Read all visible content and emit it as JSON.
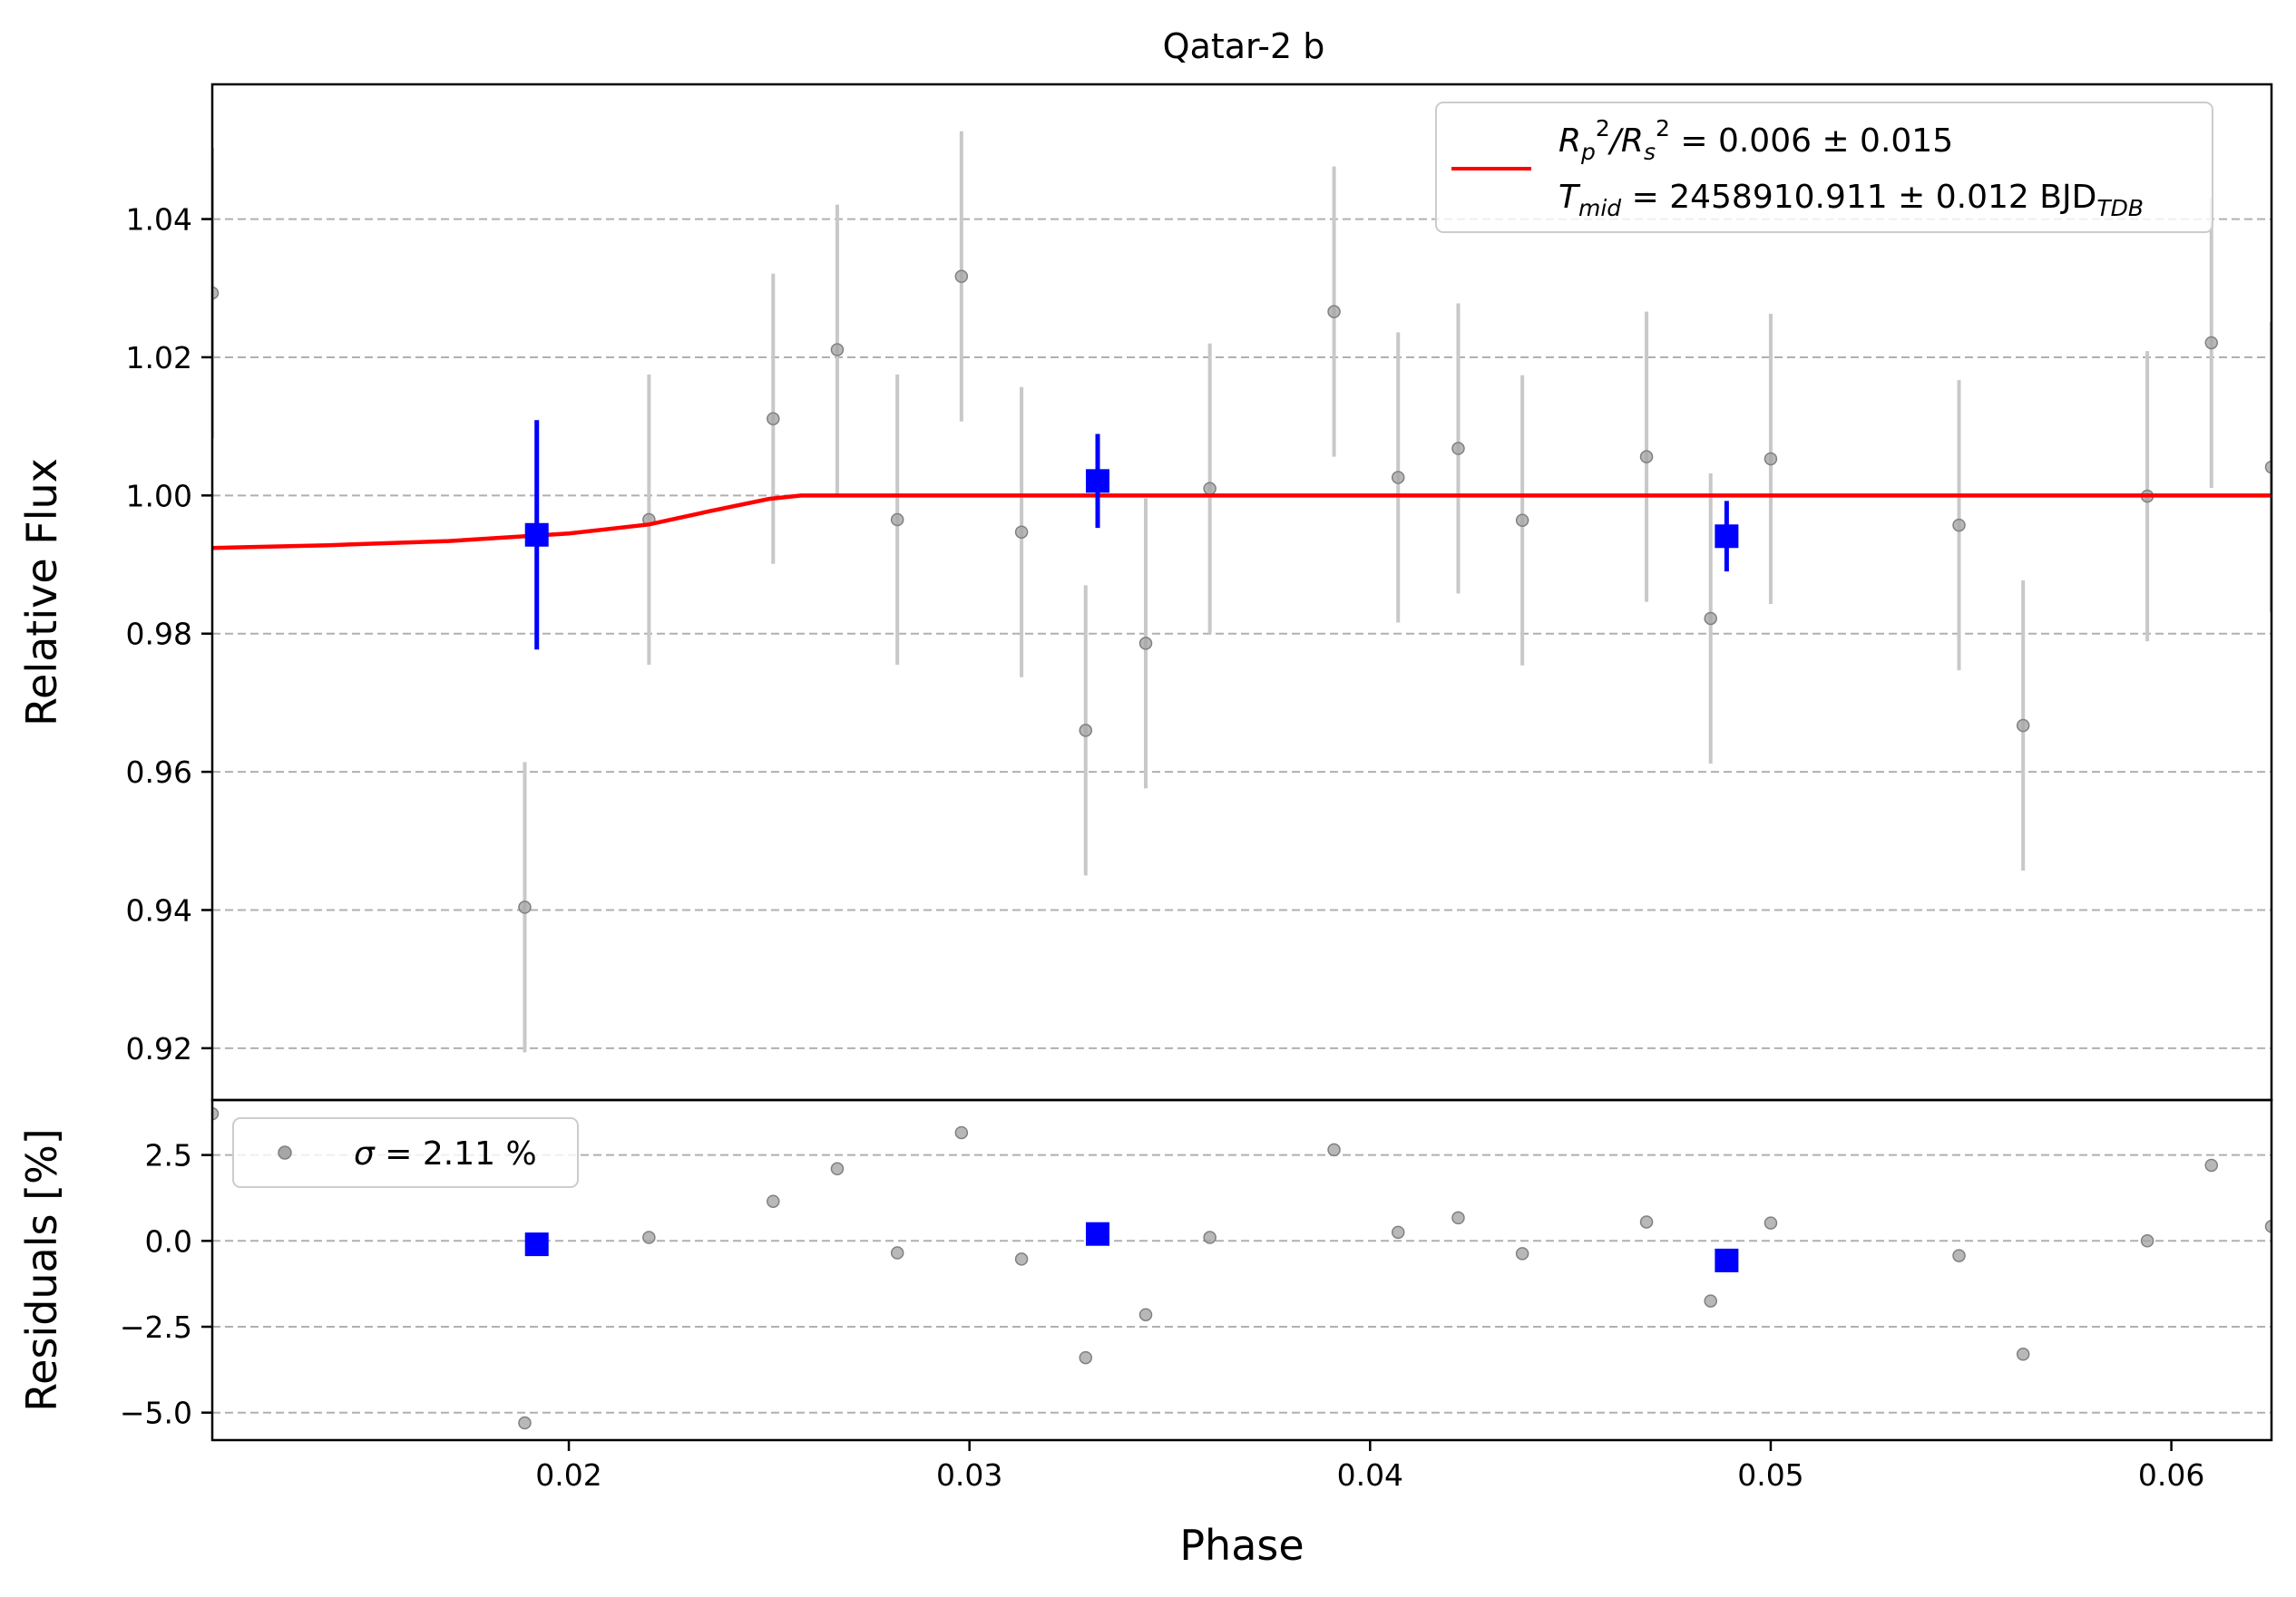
{
  "chart_data": {
    "type": "scatter",
    "title": "Qatar-2 b",
    "xlabel": "Phase",
    "xlim": [
      0.0111,
      0.0625
    ],
    "xticks": [
      0.02,
      0.03,
      0.04,
      0.05,
      0.06
    ],
    "x_tick_labels": [
      "0.02",
      "0.03",
      "0.04",
      "0.05",
      "0.06"
    ],
    "grid": "horizontal dashed",
    "colors": {
      "data": "#808080",
      "errorbar": "#c8c8c8",
      "binned": "#0000ff",
      "model": "#ff0000",
      "grid": "#b0b0b0"
    },
    "top_panel": {
      "ylabel": "Relative Flux",
      "ylim": [
        0.9125,
        1.0595
      ],
      "yticks": [
        0.92,
        0.94,
        0.96,
        0.98,
        1.0,
        1.02,
        1.04
      ],
      "y_tick_labels": [
        "0.92",
        "0.94",
        "0.96",
        "0.98",
        "1.00",
        "1.02",
        "1.04"
      ],
      "legend": {
        "position": "top-right",
        "line1_parts": [
          "R",
          "p",
          "2",
          "/R",
          "s",
          "2",
          " = 0.006 ± 0.015"
        ],
        "line2_parts": [
          "T",
          "mid",
          " = 2458910.911 ± 0.012 BJD",
          "TDB"
        ]
      },
      "data": {
        "x": [
          0.0111,
          0.0189,
          0.022,
          0.0251,
          0.0267,
          0.0282,
          0.0298,
          0.0313,
          0.0329,
          0.0344,
          0.036,
          0.0391,
          0.0407,
          0.0422,
          0.0438,
          0.0469,
          0.0485,
          0.05,
          0.0547,
          0.0563,
          0.0594,
          0.061,
          0.0625
        ],
        "y": [
          1.0293,
          0.9404,
          0.9965,
          1.0111,
          1.0211,
          0.9965,
          1.0317,
          0.9947,
          0.966,
          0.9786,
          1.001,
          1.0266,
          1.0026,
          1.0068,
          0.9964,
          1.0056,
          0.9822,
          1.0053,
          0.9957,
          0.9667,
          0.9999,
          1.0221,
          1.0041
        ],
        "yerr": [
          0.021,
          0.021,
          0.021,
          0.021,
          0.021,
          0.021,
          0.021,
          0.021,
          0.021,
          0.021,
          0.021,
          0.021,
          0.021,
          0.021,
          0.021,
          0.021,
          0.021,
          0.021,
          0.021,
          0.021,
          0.021,
          0.021,
          0.021
        ]
      },
      "binned": {
        "x": [
          0.0192,
          0.0332,
          0.0489
        ],
        "y": [
          0.9943,
          1.0021,
          0.9941
        ],
        "yerr": [
          0.0166,
          0.0068,
          0.0051
        ]
      },
      "model": {
        "x": [
          0.0111,
          0.014,
          0.017,
          0.02,
          0.022,
          0.0235,
          0.025,
          0.0258,
          0.03,
          0.04,
          0.05,
          0.0625
        ],
        "y": [
          0.9924,
          0.9928,
          0.9934,
          0.9945,
          0.9958,
          0.9977,
          0.9995,
          1.0,
          1.0,
          1.0,
          1.0,
          1.0
        ]
      }
    },
    "bottom_panel": {
      "ylabel": "Residuals [%]",
      "ylim": [
        -5.8,
        4.1
      ],
      "yticks": [
        -5.0,
        -2.5,
        0.0,
        2.5
      ],
      "y_tick_labels": [
        "−5.0",
        "−2.5",
        "0.0",
        "2.5"
      ],
      "legend": {
        "position": "top-left",
        "sigma_symbol": "σ",
        "sigma_text": " = 2.11 %"
      },
      "data": {
        "x": [
          0.0111,
          0.0189,
          0.022,
          0.0251,
          0.0267,
          0.0282,
          0.0298,
          0.0313,
          0.0329,
          0.0344,
          0.036,
          0.0391,
          0.0407,
          0.0422,
          0.0438,
          0.0469,
          0.0485,
          0.05,
          0.0547,
          0.0563,
          0.0594,
          0.061,
          0.0625
        ],
        "y": [
          3.7,
          -5.3,
          0.1,
          1.15,
          2.1,
          -0.35,
          3.15,
          -0.53,
          -3.4,
          -2.15,
          0.1,
          2.65,
          0.25,
          0.67,
          -0.37,
          0.55,
          -1.75,
          0.52,
          -0.43,
          -3.3,
          0.0,
          2.2,
          0.42
        ]
      },
      "binned": {
        "x": [
          0.0192,
          0.0332,
          0.0489
        ],
        "y": [
          -0.1,
          0.2,
          -0.57
        ]
      }
    }
  }
}
